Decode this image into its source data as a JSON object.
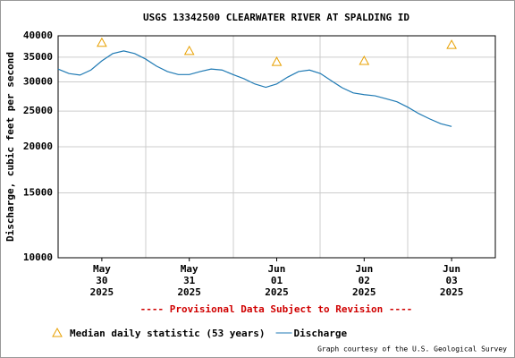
{
  "chart_data": {
    "type": "line",
    "title": "USGS 13342500 CLEARWATER RIVER AT SPALDING ID",
    "y_label": "Discharge, cubic feet per second",
    "annotation": "---- Provisional Data Subject to Revision ----",
    "credit": "Graph courtesy of the U.S. Geological Survey",
    "categories": [
      null,
      null,
      null,
      null,
      [
        "May",
        "30",
        "2025"
      ],
      null,
      null,
      null,
      null,
      null,
      null,
      null,
      [
        "May",
        "31",
        "2025"
      ],
      null,
      null,
      null,
      null,
      null,
      null,
      null,
      [
        "Jun",
        "01",
        "2025"
      ],
      null,
      null,
      null,
      null,
      null,
      null,
      null,
      [
        "Jun",
        "02",
        "2025"
      ],
      null,
      null,
      null,
      null,
      null,
      null,
      null,
      [
        "Jun",
        "03",
        "2025"
      ],
      null,
      null,
      null,
      null
    ],
    "ylim": [
      10000,
      40000
    ],
    "yticks": [
      10000,
      15000,
      20000,
      25000,
      30000,
      35000,
      40000
    ],
    "log_scale": true,
    "grid": true,
    "series": [
      {
        "name": "Median daily statistic (53 years)",
        "color": "#e8a000",
        "marker": "triangle",
        "values": [
          null,
          null,
          null,
          null,
          38300,
          null,
          null,
          null,
          null,
          null,
          null,
          null,
          36400,
          null,
          null,
          null,
          null,
          null,
          null,
          null,
          34000,
          null,
          null,
          null,
          null,
          null,
          null,
          null,
          34200,
          null,
          null,
          null,
          null,
          null,
          null,
          null,
          37800,
          null,
          null,
          null,
          null
        ]
      },
      {
        "name": "Discharge",
        "color": "#1f7ab4",
        "marker": "line",
        "values": [
          32500,
          31600,
          31300,
          32300,
          34200,
          35800,
          36400,
          35800,
          34600,
          33100,
          32000,
          31400,
          31400,
          32000,
          32500,
          32300,
          31400,
          30600,
          29600,
          29000,
          29600,
          30900,
          32000,
          32300,
          31600,
          30200,
          28900,
          28000,
          27700,
          27500,
          27000,
          26500,
          25600,
          24600,
          23800,
          23100,
          22700,
          null,
          null,
          null,
          null
        ]
      }
    ]
  }
}
